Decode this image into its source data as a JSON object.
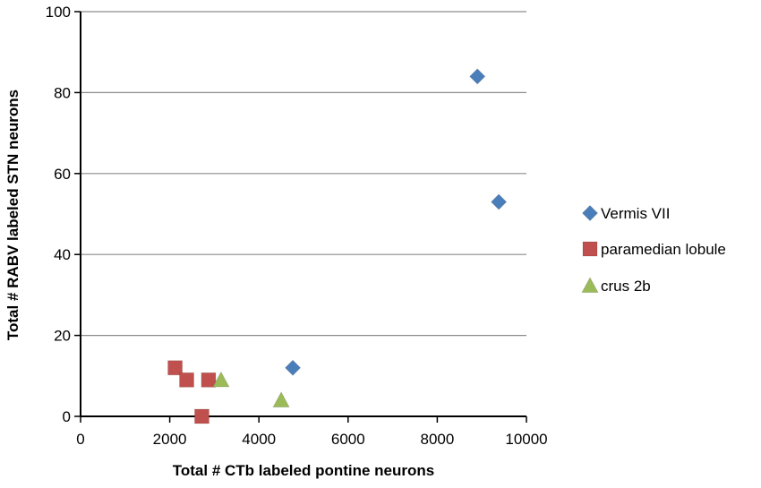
{
  "chart_data": {
    "type": "scatter",
    "title": "",
    "xlabel": "Total # CTb labeled pontine neurons",
    "ylabel": "Total # RABV labeled STN neurons",
    "xlim": [
      0,
      10000
    ],
    "ylim": [
      0,
      100
    ],
    "x_ticks": [
      0,
      2000,
      4000,
      6000,
      8000,
      10000
    ],
    "y_ticks": [
      0,
      20,
      40,
      60,
      80,
      100
    ],
    "x_tick_labels": [
      "0",
      "2000",
      "4000",
      "6000",
      "8000",
      "10000"
    ],
    "y_tick_labels": [
      "0",
      "20",
      "40",
      "60",
      "80",
      "100"
    ],
    "grid": "horizontal",
    "legend_position": "right",
    "series": [
      {
        "name": "Vermis VII",
        "marker": "diamond",
        "color": "#4a7ebb",
        "points": [
          {
            "x": 8900,
            "y": 84
          },
          {
            "x": 9380,
            "y": 53
          },
          {
            "x": 4760,
            "y": 12
          }
        ]
      },
      {
        "name": "paramedian lobule",
        "marker": "square",
        "color": "#c0504d",
        "points": [
          {
            "x": 2120,
            "y": 12
          },
          {
            "x": 2380,
            "y": 9
          },
          {
            "x": 2870,
            "y": 9
          },
          {
            "x": 2720,
            "y": 0
          }
        ]
      },
      {
        "name": "crus 2b",
        "marker": "triangle",
        "color": "#9bbb59",
        "points": [
          {
            "x": 3150,
            "y": 9
          },
          {
            "x": 4500,
            "y": 4
          }
        ]
      }
    ]
  }
}
